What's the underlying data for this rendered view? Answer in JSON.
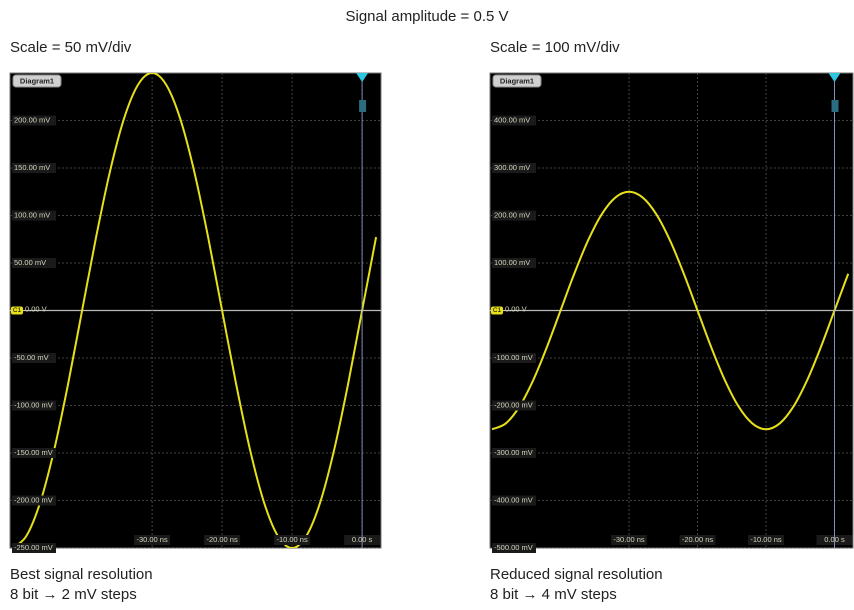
{
  "title": "Signal amplitude = 0.5 V",
  "chart_data": [
    {
      "type": "line",
      "title": "Scale = 50 mV/div",
      "diagram_label": "Diagram1",
      "marker_label": "C1",
      "caption": [
        "Best signal resolution",
        "8 bit → 2 mV steps"
      ],
      "color": "#e6e01a",
      "grid": true,
      "xlim": [
        -50.3,
        2.7
      ],
      "ylim": [
        -250,
        250
      ],
      "xticks": [
        {
          "value": -30,
          "label": "-30.00 ns"
        },
        {
          "value": -20,
          "label": "-20.00 ns"
        },
        {
          "value": -10,
          "label": "-10.00 ns"
        },
        {
          "value": 0,
          "label": "0.00 s"
        }
      ],
      "yticks": [
        {
          "value": -250,
          "label": "-250.00 mV"
        },
        {
          "value": -200,
          "label": "-200.00 mV"
        },
        {
          "value": -150,
          "label": "-150.00 mV"
        },
        {
          "value": -100,
          "label": "-100.00 mV"
        },
        {
          "value": -50,
          "label": "-50.00 mV"
        },
        {
          "value": 0,
          "label": "0.00 V"
        },
        {
          "value": 50,
          "label": "50.00 mV"
        },
        {
          "value": 100,
          "label": "100.00 mV"
        },
        {
          "value": 150,
          "label": "150.00 mV"
        },
        {
          "value": 200,
          "label": "200.00 mV"
        }
      ],
      "x": [
        -50,
        -48,
        -46,
        -44,
        -42,
        -40,
        -38,
        -36,
        -34,
        -32,
        -30,
        -28,
        -26,
        -24,
        -22,
        -20,
        -18,
        -16,
        -14,
        -12,
        -10,
        -8,
        -6,
        -4,
        -2,
        0,
        2
      ],
      "values": [
        -250,
        -237.8,
        -202.3,
        -146.9,
        -77.3,
        0,
        77.3,
        146.9,
        202.3,
        237.8,
        250,
        237.8,
        202.3,
        146.9,
        77.3,
        0,
        -77.3,
        -146.9,
        -202.3,
        -237.8,
        -250,
        -237.8,
        -202.3,
        -146.9,
        -77.3,
        0,
        77.3
      ]
    },
    {
      "type": "line",
      "title": "Scale = 100 mV/div",
      "diagram_label": "Diagram1",
      "marker_label": "C1",
      "caption": [
        "Reduced signal resolution",
        "8 bit → 4 mV steps"
      ],
      "color": "#e6e01a",
      "grid": true,
      "xlim": [
        -50.3,
        2.7
      ],
      "ylim": [
        -500,
        500
      ],
      "xticks": [
        {
          "value": -30,
          "label": "-30.00 ns"
        },
        {
          "value": -20,
          "label": "-20.00 ns"
        },
        {
          "value": -10,
          "label": "-10.00 ns"
        },
        {
          "value": 0,
          "label": "0.00 s"
        }
      ],
      "yticks": [
        {
          "value": -500,
          "label": "-500.00 mV"
        },
        {
          "value": -400,
          "label": "-400.00 mV"
        },
        {
          "value": -300,
          "label": "-300.00 mV"
        },
        {
          "value": -200,
          "label": "-200.00 mV"
        },
        {
          "value": -100,
          "label": "-100.00 mV"
        },
        {
          "value": 0,
          "label": "0.00 V"
        },
        {
          "value": 100,
          "label": "100.00 mV"
        },
        {
          "value": 200,
          "label": "200.00 mV"
        },
        {
          "value": 300,
          "label": "300.00 mV"
        },
        {
          "value": 400,
          "label": "400.00 mV"
        }
      ],
      "x": [
        -50,
        -48,
        -46,
        -44,
        -42,
        -40,
        -38,
        -36,
        -34,
        -32,
        -30,
        -28,
        -26,
        -24,
        -22,
        -20,
        -18,
        -16,
        -14,
        -12,
        -10,
        -8,
        -6,
        -4,
        -2,
        0,
        2
      ],
      "values": [
        -250,
        -237.8,
        -202.3,
        -146.9,
        -77.3,
        0,
        77.3,
        146.9,
        202.3,
        237.8,
        250,
        237.8,
        202.3,
        146.9,
        77.3,
        0,
        -77.3,
        -146.9,
        -202.3,
        -237.8,
        -250,
        -237.8,
        -202.3,
        -146.9,
        -77.3,
        0,
        77.3
      ]
    }
  ]
}
